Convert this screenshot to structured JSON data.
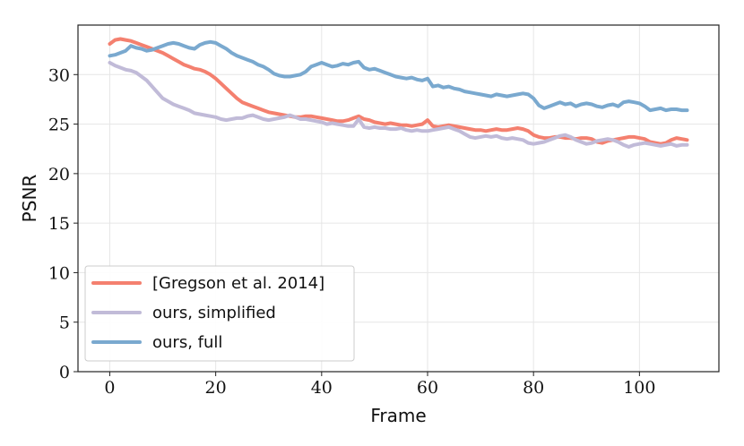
{
  "chart_data": {
    "type": "line",
    "xlabel": "Frame",
    "ylabel": "PSNR",
    "xlim": [
      -6,
      115
    ],
    "ylim": [
      0,
      35
    ],
    "xticks": [
      0,
      20,
      40,
      60,
      80,
      100
    ],
    "yticks": [
      0,
      5,
      10,
      15,
      20,
      25,
      30
    ],
    "grid": true,
    "legend_position": "lower-left",
    "series": [
      {
        "name": "[Gregson et al. 2014]",
        "color": "#f4806f",
        "points": [
          [
            0,
            33.1
          ],
          [
            1,
            33.5
          ],
          [
            2,
            33.6
          ],
          [
            3,
            33.5
          ],
          [
            4,
            33.4
          ],
          [
            5,
            33.2
          ],
          [
            6,
            33.0
          ],
          [
            7,
            32.8
          ],
          [
            8,
            32.6
          ],
          [
            9,
            32.4
          ],
          [
            10,
            32.2
          ],
          [
            11,
            31.9
          ],
          [
            12,
            31.6
          ],
          [
            13,
            31.3
          ],
          [
            14,
            31.0
          ],
          [
            15,
            30.8
          ],
          [
            16,
            30.6
          ],
          [
            17,
            30.5
          ],
          [
            18,
            30.3
          ],
          [
            19,
            30.0
          ],
          [
            20,
            29.6
          ],
          [
            21,
            29.1
          ],
          [
            22,
            28.6
          ],
          [
            23,
            28.1
          ],
          [
            24,
            27.6
          ],
          [
            25,
            27.2
          ],
          [
            26,
            27.0
          ],
          [
            27,
            26.8
          ],
          [
            28,
            26.6
          ],
          [
            29,
            26.4
          ],
          [
            30,
            26.2
          ],
          [
            31,
            26.1
          ],
          [
            32,
            26.0
          ],
          [
            33,
            25.9
          ],
          [
            34,
            25.8
          ],
          [
            35,
            25.7
          ],
          [
            36,
            25.7
          ],
          [
            37,
            25.8
          ],
          [
            38,
            25.8
          ],
          [
            39,
            25.7
          ],
          [
            40,
            25.6
          ],
          [
            41,
            25.5
          ],
          [
            42,
            25.4
          ],
          [
            43,
            25.3
          ],
          [
            44,
            25.3
          ],
          [
            45,
            25.4
          ],
          [
            46,
            25.6
          ],
          [
            47,
            25.8
          ],
          [
            48,
            25.5
          ],
          [
            49,
            25.4
          ],
          [
            50,
            25.2
          ],
          [
            51,
            25.1
          ],
          [
            52,
            25.0
          ],
          [
            53,
            25.1
          ],
          [
            54,
            25.0
          ],
          [
            55,
            24.9
          ],
          [
            56,
            24.9
          ],
          [
            57,
            24.8
          ],
          [
            58,
            24.9
          ],
          [
            59,
            25.0
          ],
          [
            60,
            25.4
          ],
          [
            61,
            24.8
          ],
          [
            62,
            24.7
          ],
          [
            63,
            24.8
          ],
          [
            64,
            24.9
          ],
          [
            65,
            24.8
          ],
          [
            66,
            24.7
          ],
          [
            67,
            24.6
          ],
          [
            68,
            24.5
          ],
          [
            69,
            24.4
          ],
          [
            70,
            24.4
          ],
          [
            71,
            24.3
          ],
          [
            72,
            24.4
          ],
          [
            73,
            24.5
          ],
          [
            74,
            24.4
          ],
          [
            75,
            24.4
          ],
          [
            76,
            24.5
          ],
          [
            77,
            24.6
          ],
          [
            78,
            24.5
          ],
          [
            79,
            24.3
          ],
          [
            80,
            23.9
          ],
          [
            81,
            23.7
          ],
          [
            82,
            23.6
          ],
          [
            83,
            23.6
          ],
          [
            84,
            23.7
          ],
          [
            85,
            23.7
          ],
          [
            86,
            23.6
          ],
          [
            87,
            23.6
          ],
          [
            88,
            23.5
          ],
          [
            89,
            23.6
          ],
          [
            90,
            23.6
          ],
          [
            91,
            23.5
          ],
          [
            92,
            23.2
          ],
          [
            93,
            23.1
          ],
          [
            94,
            23.3
          ],
          [
            95,
            23.4
          ],
          [
            96,
            23.5
          ],
          [
            97,
            23.6
          ],
          [
            98,
            23.7
          ],
          [
            99,
            23.7
          ],
          [
            100,
            23.6
          ],
          [
            101,
            23.5
          ],
          [
            102,
            23.2
          ],
          [
            103,
            23.1
          ],
          [
            104,
            23.0
          ],
          [
            105,
            23.1
          ],
          [
            106,
            23.4
          ],
          [
            107,
            23.6
          ],
          [
            108,
            23.5
          ],
          [
            109,
            23.4
          ]
        ]
      },
      {
        "name": "ours, simplified",
        "color": "#c1bbd8",
        "points": [
          [
            0,
            31.2
          ],
          [
            1,
            30.9
          ],
          [
            2,
            30.7
          ],
          [
            3,
            30.5
          ],
          [
            4,
            30.4
          ],
          [
            5,
            30.2
          ],
          [
            6,
            29.8
          ],
          [
            7,
            29.4
          ],
          [
            8,
            28.8
          ],
          [
            9,
            28.2
          ],
          [
            10,
            27.6
          ],
          [
            11,
            27.3
          ],
          [
            12,
            27.0
          ],
          [
            13,
            26.8
          ],
          [
            14,
            26.6
          ],
          [
            15,
            26.4
          ],
          [
            16,
            26.1
          ],
          [
            17,
            26.0
          ],
          [
            18,
            25.9
          ],
          [
            19,
            25.8
          ],
          [
            20,
            25.7
          ],
          [
            21,
            25.5
          ],
          [
            22,
            25.4
          ],
          [
            23,
            25.5
          ],
          [
            24,
            25.6
          ],
          [
            25,
            25.6
          ],
          [
            26,
            25.8
          ],
          [
            27,
            25.9
          ],
          [
            28,
            25.7
          ],
          [
            29,
            25.5
          ],
          [
            30,
            25.4
          ],
          [
            31,
            25.5
          ],
          [
            32,
            25.6
          ],
          [
            33,
            25.7
          ],
          [
            34,
            25.9
          ],
          [
            35,
            25.7
          ],
          [
            36,
            25.5
          ],
          [
            37,
            25.5
          ],
          [
            38,
            25.4
          ],
          [
            39,
            25.3
          ],
          [
            40,
            25.2
          ],
          [
            41,
            25.0
          ],
          [
            42,
            25.1
          ],
          [
            43,
            25.0
          ],
          [
            44,
            24.9
          ],
          [
            45,
            24.8
          ],
          [
            46,
            24.8
          ],
          [
            47,
            25.5
          ],
          [
            48,
            24.7
          ],
          [
            49,
            24.6
          ],
          [
            50,
            24.7
          ],
          [
            51,
            24.6
          ],
          [
            52,
            24.6
          ],
          [
            53,
            24.5
          ],
          [
            54,
            24.5
          ],
          [
            55,
            24.6
          ],
          [
            56,
            24.4
          ],
          [
            57,
            24.3
          ],
          [
            58,
            24.4
          ],
          [
            59,
            24.3
          ],
          [
            60,
            24.3
          ],
          [
            61,
            24.4
          ],
          [
            62,
            24.5
          ],
          [
            63,
            24.6
          ],
          [
            64,
            24.7
          ],
          [
            65,
            24.5
          ],
          [
            66,
            24.3
          ],
          [
            67,
            24.0
          ],
          [
            68,
            23.7
          ],
          [
            69,
            23.6
          ],
          [
            70,
            23.7
          ],
          [
            71,
            23.8
          ],
          [
            72,
            23.7
          ],
          [
            73,
            23.8
          ],
          [
            74,
            23.6
          ],
          [
            75,
            23.5
          ],
          [
            76,
            23.6
          ],
          [
            77,
            23.5
          ],
          [
            78,
            23.4
          ],
          [
            79,
            23.1
          ],
          [
            80,
            23.0
          ],
          [
            81,
            23.1
          ],
          [
            82,
            23.2
          ],
          [
            83,
            23.4
          ],
          [
            84,
            23.6
          ],
          [
            85,
            23.8
          ],
          [
            86,
            23.9
          ],
          [
            87,
            23.7
          ],
          [
            88,
            23.4
          ],
          [
            89,
            23.2
          ],
          [
            90,
            23.0
          ],
          [
            91,
            23.1
          ],
          [
            92,
            23.3
          ],
          [
            93,
            23.4
          ],
          [
            94,
            23.5
          ],
          [
            95,
            23.4
          ],
          [
            96,
            23.2
          ],
          [
            97,
            22.9
          ],
          [
            98,
            22.7
          ],
          [
            99,
            22.9
          ],
          [
            100,
            23.0
          ],
          [
            101,
            23.1
          ],
          [
            102,
            23.0
          ],
          [
            103,
            22.9
          ],
          [
            104,
            22.8
          ],
          [
            105,
            22.9
          ],
          [
            106,
            23.0
          ],
          [
            107,
            22.8
          ],
          [
            108,
            22.9
          ],
          [
            109,
            22.9
          ]
        ]
      },
      {
        "name": "ours, full",
        "color": "#7aa9cf",
        "points": [
          [
            0,
            31.9
          ],
          [
            1,
            32.0
          ],
          [
            2,
            32.2
          ],
          [
            3,
            32.4
          ],
          [
            4,
            32.9
          ],
          [
            5,
            32.7
          ],
          [
            6,
            32.6
          ],
          [
            7,
            32.4
          ],
          [
            8,
            32.5
          ],
          [
            9,
            32.7
          ],
          [
            10,
            32.9
          ],
          [
            11,
            33.1
          ],
          [
            12,
            33.2
          ],
          [
            13,
            33.1
          ],
          [
            14,
            32.9
          ],
          [
            15,
            32.7
          ],
          [
            16,
            32.6
          ],
          [
            17,
            33.0
          ],
          [
            18,
            33.2
          ],
          [
            19,
            33.3
          ],
          [
            20,
            33.2
          ],
          [
            21,
            32.9
          ],
          [
            22,
            32.6
          ],
          [
            23,
            32.2
          ],
          [
            24,
            31.9
          ],
          [
            25,
            31.7
          ],
          [
            26,
            31.5
          ],
          [
            27,
            31.3
          ],
          [
            28,
            31.0
          ],
          [
            29,
            30.8
          ],
          [
            30,
            30.5
          ],
          [
            31,
            30.1
          ],
          [
            32,
            29.9
          ],
          [
            33,
            29.8
          ],
          [
            34,
            29.8
          ],
          [
            35,
            29.9
          ],
          [
            36,
            30.0
          ],
          [
            37,
            30.3
          ],
          [
            38,
            30.8
          ],
          [
            39,
            31.0
          ],
          [
            40,
            31.2
          ],
          [
            41,
            31.0
          ],
          [
            42,
            30.8
          ],
          [
            43,
            30.9
          ],
          [
            44,
            31.1
          ],
          [
            45,
            31.0
          ],
          [
            46,
            31.2
          ],
          [
            47,
            31.3
          ],
          [
            48,
            30.7
          ],
          [
            49,
            30.5
          ],
          [
            50,
            30.6
          ],
          [
            51,
            30.4
          ],
          [
            52,
            30.2
          ],
          [
            53,
            30.0
          ],
          [
            54,
            29.8
          ],
          [
            55,
            29.7
          ],
          [
            56,
            29.6
          ],
          [
            57,
            29.7
          ],
          [
            58,
            29.5
          ],
          [
            59,
            29.4
          ],
          [
            60,
            29.6
          ],
          [
            61,
            28.8
          ],
          [
            62,
            28.9
          ],
          [
            63,
            28.7
          ],
          [
            64,
            28.8
          ],
          [
            65,
            28.6
          ],
          [
            66,
            28.5
          ],
          [
            67,
            28.3
          ],
          [
            68,
            28.2
          ],
          [
            69,
            28.1
          ],
          [
            70,
            28.0
          ],
          [
            71,
            27.9
          ],
          [
            72,
            27.8
          ],
          [
            73,
            28.0
          ],
          [
            74,
            27.9
          ],
          [
            75,
            27.8
          ],
          [
            76,
            27.9
          ],
          [
            77,
            28.0
          ],
          [
            78,
            28.1
          ],
          [
            79,
            28.0
          ],
          [
            80,
            27.6
          ],
          [
            81,
            26.9
          ],
          [
            82,
            26.6
          ],
          [
            83,
            26.8
          ],
          [
            84,
            27.0
          ],
          [
            85,
            27.2
          ],
          [
            86,
            27.0
          ],
          [
            87,
            27.1
          ],
          [
            88,
            26.8
          ],
          [
            89,
            27.0
          ],
          [
            90,
            27.1
          ],
          [
            91,
            27.0
          ],
          [
            92,
            26.8
          ],
          [
            93,
            26.7
          ],
          [
            94,
            26.9
          ],
          [
            95,
            27.0
          ],
          [
            96,
            26.8
          ],
          [
            97,
            27.2
          ],
          [
            98,
            27.3
          ],
          [
            99,
            27.2
          ],
          [
            100,
            27.1
          ],
          [
            101,
            26.8
          ],
          [
            102,
            26.4
          ],
          [
            103,
            26.5
          ],
          [
            104,
            26.6
          ],
          [
            105,
            26.4
          ],
          [
            106,
            26.5
          ],
          [
            107,
            26.5
          ],
          [
            108,
            26.4
          ],
          [
            109,
            26.4
          ]
        ]
      }
    ]
  }
}
